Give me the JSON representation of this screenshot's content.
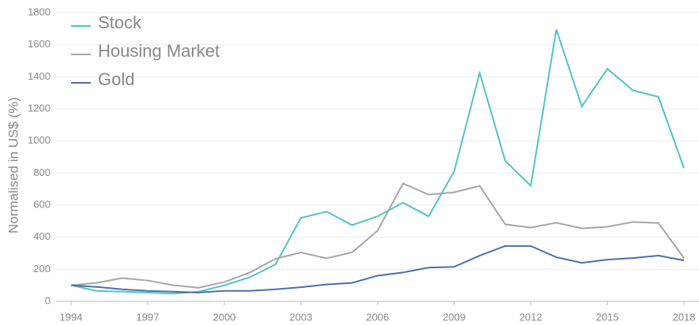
{
  "chart_data": {
    "type": "line",
    "y_label": "Normalised in US$ (%)",
    "x": [
      1994,
      1995,
      1996,
      1997,
      1998,
      1999,
      2000,
      2001,
      2002,
      2003,
      2004,
      2005,
      2006,
      2007,
      2008,
      2009,
      2010,
      2011,
      2012,
      2013,
      2014,
      2015,
      2016,
      2017,
      2018
    ],
    "xlim": [
      1994,
      2018
    ],
    "xticks": [
      1994,
      1997,
      2000,
      2003,
      2006,
      2009,
      2012,
      2015,
      2018
    ],
    "ylim": [
      0,
      1800
    ],
    "yticks": [
      0,
      200,
      400,
      600,
      800,
      1000,
      1200,
      1400,
      1600,
      1800
    ],
    "grid": true,
    "legend": "upper left",
    "series": [
      {
        "name": "Stock",
        "color": "#4fc3c9",
        "values": [
          100,
          65,
          60,
          55,
          48,
          60,
          100,
          150,
          230,
          520,
          560,
          475,
          530,
          615,
          530,
          810,
          1425,
          875,
          720,
          1695,
          1215,
          1450,
          1315,
          1275,
          830
        ]
      },
      {
        "name": "Housing Market",
        "color": "#a6a6a6",
        "values": [
          100,
          115,
          145,
          130,
          100,
          85,
          120,
          180,
          265,
          305,
          268,
          305,
          440,
          735,
          665,
          680,
          720,
          480,
          460,
          490,
          455,
          465,
          495,
          488,
          270
        ]
      },
      {
        "name": "Gold",
        "color": "#4a6fab",
        "values": [
          100,
          90,
          75,
          65,
          60,
          55,
          65,
          65,
          75,
          88,
          105,
          115,
          160,
          180,
          210,
          215,
          285,
          345,
          345,
          275,
          240,
          260,
          270,
          285,
          255
        ]
      }
    ]
  }
}
